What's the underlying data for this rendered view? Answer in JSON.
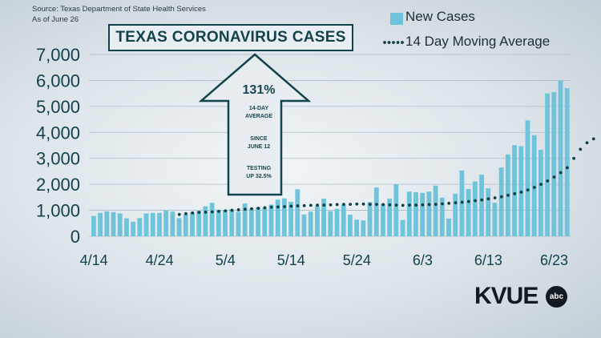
{
  "source_line": "Source: Texas Department of State Health Services",
  "date_line": "As of June 26",
  "chart_data": {
    "type": "bar",
    "title": "TEXAS CORONAVIRUS CASES",
    "legend": [
      "New Cases",
      "14 Day Moving Average"
    ],
    "legend_position": "top-right",
    "ylim": [
      0,
      7000
    ],
    "y_ticks": [
      "0",
      "1,000",
      "2,000",
      "3,000",
      "4,000",
      "5,000",
      "6,000",
      "7,000"
    ],
    "x_ticks": [
      "4/14",
      "4/24",
      "5/4",
      "5/14",
      "5/24",
      "6/3",
      "6/13",
      "6/23"
    ],
    "grid": true,
    "series": [
      {
        "name": "New Cases",
        "values": [
          780,
          900,
          960,
          930,
          880,
          690,
          560,
          700,
          880,
          900,
          900,
          1000,
          950,
          700,
          850,
          920,
          980,
          1150,
          1290,
          1020,
          1010,
          1030,
          950,
          1260,
          1060,
          1120,
          1100,
          1220,
          1410,
          1460,
          1330,
          1810,
          840,
          950,
          1180,
          1450,
          970,
          1060,
          1210,
          830,
          640,
          610,
          1320,
          1880,
          1240,
          1450,
          2000,
          630,
          1720,
          1700,
          1670,
          1720,
          1950,
          1490,
          680,
          1640,
          2530,
          1820,
          2110,
          2370,
          1850,
          1290,
          2650,
          3150,
          3510,
          3470,
          4460,
          3890,
          3330,
          5500,
          5550,
          6000,
          5700
        ]
      },
      {
        "name": "14 Day Moving Average",
        "x_start_index": 13,
        "values": [
          840,
          870,
          900,
          920,
          930,
          940,
          960,
          980,
          1000,
          1020,
          1040,
          1060,
          1080,
          1100,
          1120,
          1130,
          1140,
          1160,
          1170,
          1180,
          1190,
          1200,
          1200,
          1210,
          1220,
          1230,
          1230,
          1240,
          1240,
          1230,
          1230,
          1220,
          1210,
          1200,
          1190,
          1200,
          1200,
          1210,
          1220,
          1230,
          1250,
          1270,
          1290,
          1310,
          1340,
          1370,
          1400,
          1440,
          1480,
          1520,
          1580,
          1640,
          1700,
          1780,
          1880,
          2000,
          2130,
          2280,
          2450,
          2640,
          3000,
          3350,
          3600,
          3750
        ]
      }
    ]
  },
  "arrow": {
    "pct": "131%",
    "l1": "14-DAY",
    "l2": "AVERAGE",
    "l3": "SINCE",
    "l4": "JUNE 12",
    "l5": "TESTING",
    "l6": "UP 32.5%"
  },
  "logo": {
    "text": "KVUE",
    "badge": "abc"
  },
  "colors": {
    "bar": "#6fc4dc",
    "avg": "#113f48",
    "title": "#12424c"
  }
}
